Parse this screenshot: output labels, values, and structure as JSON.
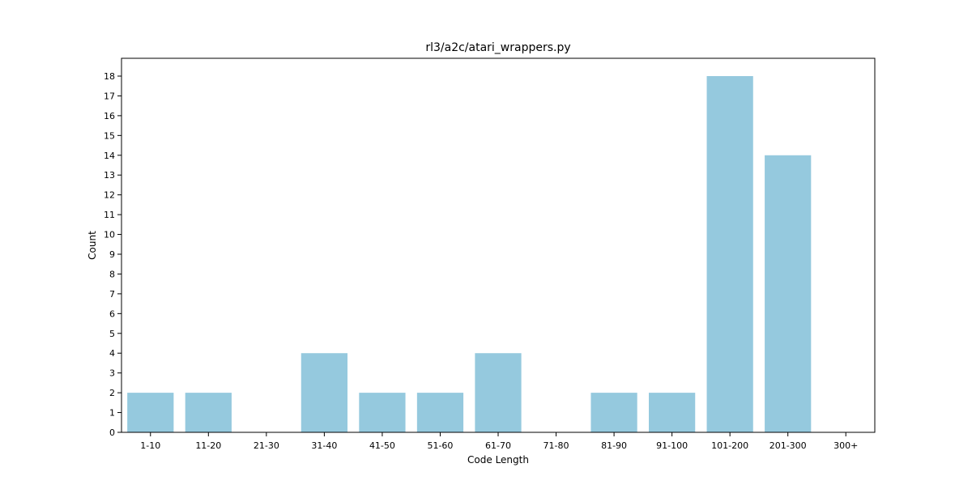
{
  "chart_data": {
    "type": "bar",
    "title": "rl3/a2c/atari_wrappers.py",
    "xlabel": "Code Length",
    "ylabel": "Count",
    "categories": [
      "1-10",
      "11-20",
      "21-30",
      "31-40",
      "41-50",
      "51-60",
      "61-70",
      "71-80",
      "81-90",
      "91-100",
      "101-200",
      "201-300",
      "300+"
    ],
    "values": [
      2,
      2,
      0,
      4,
      2,
      2,
      4,
      0,
      2,
      2,
      18,
      14,
      0
    ],
    "ylim": [
      0,
      18.9
    ],
    "yticks": [
      0,
      1,
      2,
      3,
      4,
      5,
      6,
      7,
      8,
      9,
      10,
      11,
      12,
      13,
      14,
      15,
      16,
      17,
      18
    ],
    "bar_color": "#95c9de",
    "grid": false,
    "legend": "none"
  }
}
